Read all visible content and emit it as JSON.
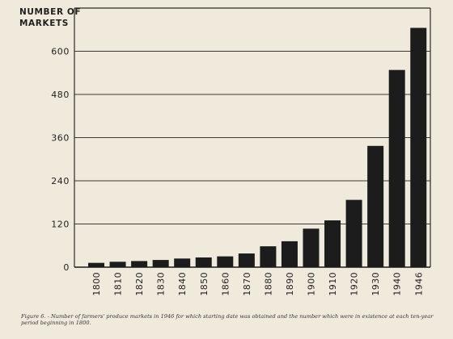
{
  "chart_data": {
    "type": "bar",
    "ylabel_line1": "NUMBER OF",
    "ylabel_line2": "MARKETS",
    "xlabel": "",
    "categories": [
      "1800",
      "1810",
      "1820",
      "1830",
      "1840",
      "1850",
      "1860",
      "1870",
      "1880",
      "1890",
      "1900",
      "1910",
      "1920",
      "1930",
      "1940",
      "1946"
    ],
    "values": [
      12,
      15,
      17,
      20,
      24,
      27,
      30,
      38,
      58,
      72,
      107,
      130,
      187,
      337,
      548,
      665
    ],
    "yticks": [
      0,
      120,
      240,
      360,
      480,
      600
    ],
    "ytick_labels": [
      "0",
      "120",
      "240",
      "360",
      "480",
      "600"
    ],
    "ylim": [
      0,
      720
    ],
    "grid": "horizontal",
    "bar_color": "#1c1c1c",
    "caption": "Figure 6. - Number of farmers' produce markets in 1946 for which starting date was obtained and the number which were in existence at each ten-year period beginning in 1800."
  }
}
